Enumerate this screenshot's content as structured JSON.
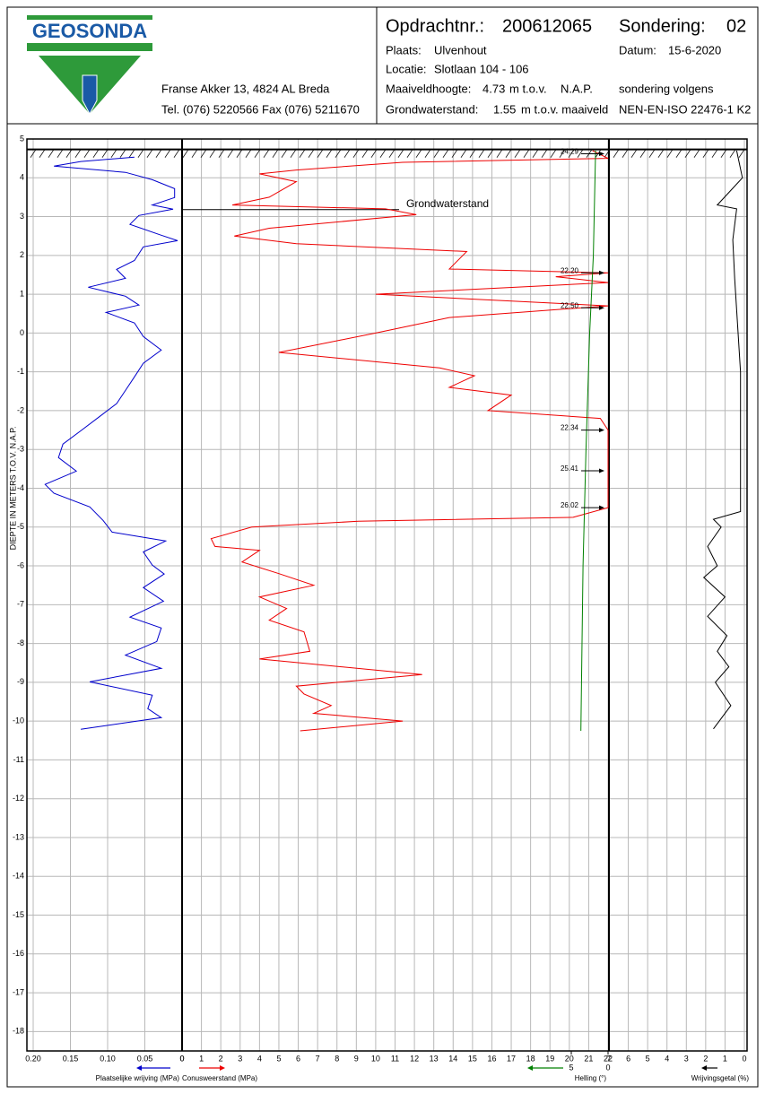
{
  "header": {
    "logo": "GEOSONDA",
    "address": "Franse Akker 13, 4824 AL Breda",
    "phone": "Tel. (076) 5220566 Fax (076) 5211670",
    "order_label": "Opdrachtnr.:",
    "order": "200612065",
    "sounding_label": "Sondering:",
    "sounding": "02",
    "place_label": "Plaats:",
    "place": "Ulvenhout",
    "date_label": "Datum:",
    "date": "15-6-2020",
    "location_label": "Locatie:",
    "location": "Slotlaan 104 - 106",
    "surface_label": "Maaiveldhoogte:",
    "surface": 4.73,
    "surface_unit": "m t.o.v.",
    "surface_ref": "N.A.P.",
    "standard_label": "sondering volgens",
    "groundwater_label": "Grondwaterstand:",
    "groundwater": 1.55,
    "groundwater_unit": "m t.o.v. maaiveld",
    "standard": "NEN-EN-ISO 22476-1 K2"
  },
  "chart_data": [
    {
      "type": "line",
      "y_label": "DIEPTE IN METERS T.O.V.  N.A.P.",
      "ylim": [
        -18.5,
        5
      ],
      "yticks": [
        5,
        4,
        3,
        2,
        1,
        0,
        -1,
        -2,
        -3,
        -4,
        -5,
        -6,
        -7,
        -8,
        -9,
        -10,
        -11,
        -12,
        -13,
        -14,
        -15,
        -16,
        -17,
        -18
      ],
      "x_label": "Plaatselijke wrijving (MPa)",
      "color": "#0000cc",
      "xlim": [
        0.2,
        0
      ],
      "xticks": [
        {
          "value": 0.2,
          "label": "0.20"
        },
        0.15,
        {
          "value": 0.1,
          "label": "0.10"
        },
        0.05,
        0
      ],
      "depth": [
        4.53,
        4.42,
        4.3,
        4.14,
        3.95,
        3.72,
        3.49,
        3.3,
        3.19,
        3.03,
        2.8,
        2.52,
        2.38,
        2.22,
        1.87,
        1.64,
        1.41,
        1.18,
        0.95,
        0.72,
        0.53,
        0.26,
        -0.09,
        -0.44,
        -0.78,
        -1.13,
        -1.48,
        -1.82,
        -2.17,
        -2.52,
        -2.86,
        -3.21,
        -3.56,
        -3.9,
        -4.13,
        -4.48,
        -4.83,
        -5.13,
        -5.36,
        -5.64,
        -5.98,
        -6.21,
        -6.56,
        -6.91,
        -7.32,
        -7.6,
        -7.95,
        -8.3,
        -8.64,
        -8.99,
        -9.33,
        -9.68,
        -9.91,
        -10.21
      ],
      "values": [
        0.064,
        0.136,
        0.172,
        0.076,
        0.04,
        0.01,
        0.01,
        0.04,
        0.012,
        0.058,
        0.07,
        0.028,
        0.006,
        0.052,
        0.064,
        0.088,
        0.076,
        0.126,
        0.076,
        0.058,
        0.102,
        0.064,
        0.052,
        0.028,
        0.052,
        0.064,
        0.076,
        0.088,
        0.112,
        0.136,
        0.16,
        0.166,
        0.142,
        0.184,
        0.172,
        0.124,
        0.106,
        0.094,
        0.022,
        0.052,
        0.04,
        0.024,
        0.052,
        0.025,
        0.07,
        0.028,
        0.034,
        0.076,
        0.028,
        0.124,
        0.04,
        0.046,
        0.028,
        0.136
      ]
    },
    {
      "type": "line",
      "x_label": "Conusweerstand (MPa)",
      "color": "#ee0000",
      "xlim": [
        0,
        22
      ],
      "xticks": [
        0,
        1,
        2,
        3,
        4,
        5,
        6,
        7,
        8,
        9,
        10,
        11,
        12,
        13,
        14,
        15,
        16,
        17,
        18,
        19,
        20,
        21,
        22
      ],
      "depth": [
        4.7,
        4.5,
        4.4,
        4.2,
        4.1,
        3.9,
        3.5,
        3.3,
        3.2,
        3.05,
        2.7,
        2.5,
        2.3,
        2.1,
        1.65,
        1.55,
        1.45,
        1.3,
        1.0,
        0.7,
        0.4,
        0.0,
        -0.5,
        -0.9,
        -1.1,
        -1.4,
        -1.6,
        -2.0,
        -2.2,
        -2.5,
        -4.5,
        -4.75,
        -4.85,
        -5.0,
        -5.3,
        -5.5,
        -5.6,
        -5.9,
        -6.2,
        -6.5,
        -6.8,
        -7.1,
        -7.4,
        -7.7,
        -8.2,
        -8.4,
        -8.8,
        -9.1,
        -9.3,
        -9.6,
        -9.8,
        -10.0,
        -10.25
      ],
      "values": [
        21.2,
        22,
        11.4,
        5.9,
        4.0,
        5.9,
        4.5,
        2.6,
        10.5,
        12.1,
        4.5,
        2.7,
        5.9,
        14.7,
        13.8,
        22,
        19.3,
        22,
        10,
        22,
        13.8,
        10,
        5,
        13.3,
        15.1,
        13.8,
        17,
        15.8,
        21.6,
        22,
        22,
        20.2,
        9.1,
        3.6,
        1.5,
        1.7,
        4,
        3.1,
        5,
        6.8,
        4,
        5.4,
        4.5,
        6.3,
        6.6,
        4,
        12.4,
        5.9,
        6.3,
        7.7,
        6.8,
        11.4,
        6.1
      ],
      "annotation": "Grondwaterstand",
      "markers": [
        {
          "label": "24.29",
          "depth": 4.62
        },
        {
          "label": "22.20",
          "depth": 1.55
        },
        {
          "label": "22.50",
          "depth": 0.65
        },
        {
          "label": "22.34",
          "depth": -2.5
        },
        {
          "label": "25.41",
          "depth": -3.55
        },
        {
          "label": "26.02",
          "depth": -4.5
        }
      ]
    },
    {
      "type": "line",
      "x_label": "Helling (°)",
      "color": "#008000",
      "xlim": [
        5,
        0
      ],
      "xticks": [
        5,
        0
      ],
      "depth": [
        4.7,
        2,
        0,
        -3,
        -6,
        -10.25
      ],
      "values": [
        1.7,
        2.0,
        2.5,
        3.0,
        3.4,
        3.7
      ]
    },
    {
      "type": "line",
      "x_label": "Wrijvingsgetal (%)",
      "color": "#000000",
      "xlim": [
        7,
        0
      ],
      "xticks": [
        7,
        6,
        5,
        4,
        3,
        2,
        1,
        0
      ],
      "depth": [
        4.7,
        4.0,
        3.3,
        3.2,
        2.4,
        1.4,
        -1,
        -4.6,
        -4.8,
        -5.0,
        -5.5,
        -6,
        -6.3,
        -6.8,
        -7.3,
        -7.8,
        -8.2,
        -8.6,
        -9,
        -9.6,
        -10.2
      ],
      "values": [
        0.4,
        0.1,
        1.4,
        0.4,
        0.6,
        0.5,
        0.2,
        0.2,
        1.6,
        1.2,
        1.9,
        1.4,
        2.1,
        1.0,
        1.9,
        0.9,
        1.4,
        0.8,
        1.5,
        0.7,
        1.6
      ]
    }
  ]
}
